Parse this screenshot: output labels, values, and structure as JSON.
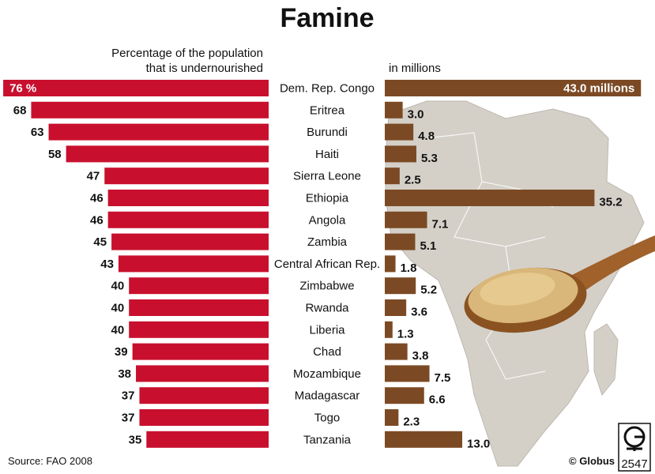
{
  "colors": {
    "left_bar": "#c8102e",
    "right_bar": "#7b4a24",
    "map": "#d4d0c8",
    "map_shadow": "#c4c0b8",
    "spoon": "#a0612a",
    "grain": "#d9b679"
  },
  "icons": [
    "africa-map",
    "spoon-with-grain",
    "globus-logo"
  ],
  "chart_data": {
    "type": "bar",
    "title": "Famine",
    "left_axis_label": "Percentage of the population that is undernourished",
    "left_axis_label_lines": [
      "Percentage of the population",
      "that is undernourished"
    ],
    "right_axis_label": "in millions",
    "categories": [
      "Dem. Rep. Congo",
      "Eritrea",
      "Burundi",
      "Haiti",
      "Sierra Leone",
      "Ethiopia",
      "Angola",
      "Zambia",
      "Central African Rep.",
      "Zimbabwe",
      "Rwanda",
      "Liberia",
      "Chad",
      "Mozambique",
      "Madagascar",
      "Togo",
      "Tanzania"
    ],
    "series": [
      {
        "name": "Percentage of the population that is undernourished",
        "values": [
          76,
          68,
          63,
          58,
          47,
          46,
          46,
          45,
          43,
          40,
          40,
          40,
          39,
          38,
          37,
          37,
          35
        ],
        "labels": [
          "76 %",
          "68",
          "63",
          "58",
          "47",
          "46",
          "46",
          "45",
          "43",
          "40",
          "40",
          "40",
          "39",
          "38",
          "37",
          "37",
          "35"
        ]
      },
      {
        "name": "in millions",
        "values": [
          43.0,
          3.0,
          4.8,
          5.3,
          2.5,
          35.2,
          7.1,
          5.1,
          1.8,
          5.2,
          3.6,
          1.3,
          3.8,
          7.5,
          6.6,
          2.3,
          13.0
        ],
        "labels": [
          "43.0 millions",
          "3.0",
          "4.8",
          "5.3",
          "2.5",
          "35.2",
          "7.1",
          "5.1",
          "1.8",
          "5.2",
          "3.6",
          "1.3",
          "3.8",
          "7.5",
          "6.6",
          "2.3",
          "13.0"
        ]
      }
    ],
    "source": "Source: FAO 2008",
    "credit": "© Globus",
    "logo_number": "2547"
  }
}
